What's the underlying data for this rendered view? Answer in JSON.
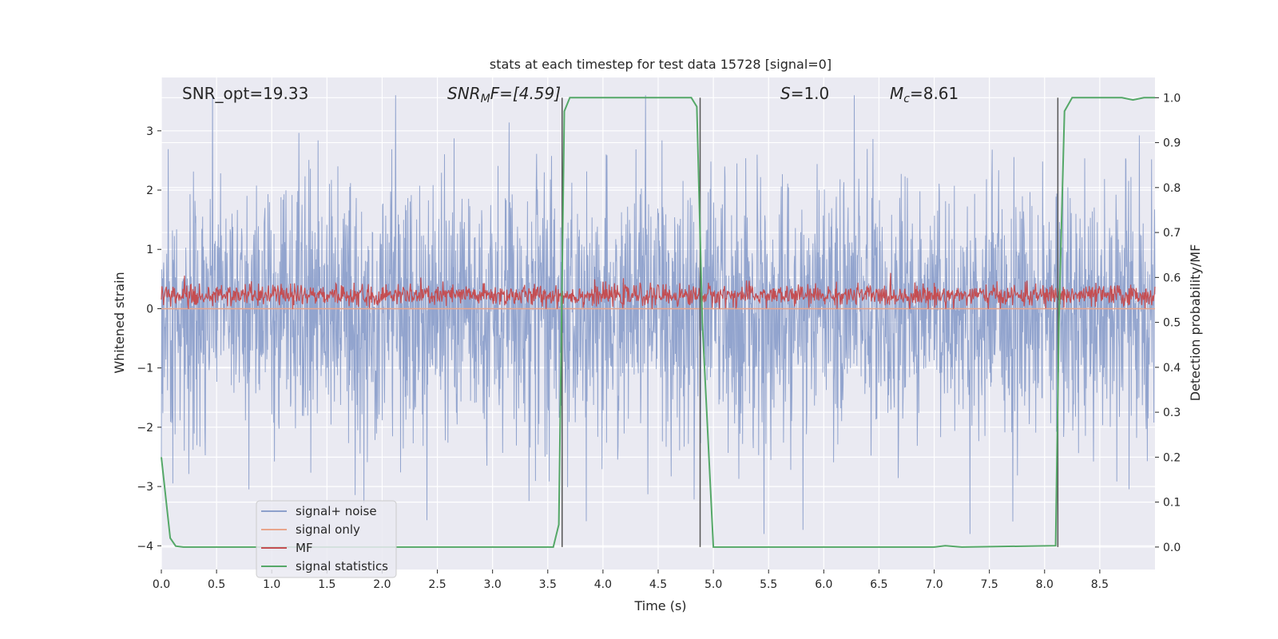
{
  "chart_data": {
    "type": "line",
    "title": "stats at each timestep for test data 15728 [signal=0]",
    "xlabel": "Time (s)",
    "ylabel": "Whitened strain",
    "y2label": "Detection probability/MF",
    "xlim": [
      0,
      9
    ],
    "ylim": [
      -4.4,
      3.9
    ],
    "y2lim": [
      -0.05,
      1.045
    ],
    "grid": true,
    "legend_position": "lower-left",
    "x_ticks": [
      "0.0",
      "0.5",
      "1.0",
      "1.5",
      "2.0",
      "2.5",
      "3.0",
      "3.5",
      "4.0",
      "4.5",
      "5.0",
      "5.5",
      "6.0",
      "6.5",
      "7.0",
      "7.5",
      "8.0",
      "8.5"
    ],
    "x_tick_values": [
      0,
      0.5,
      1,
      1.5,
      2,
      2.5,
      3,
      3.5,
      4,
      4.5,
      5,
      5.5,
      6,
      6.5,
      7,
      7.5,
      8,
      8.5
    ],
    "y_ticks": [
      "−4",
      "−3",
      "−2",
      "−1",
      "0",
      "1",
      "2",
      "3"
    ],
    "y_tick_values": [
      -4,
      -3,
      -2,
      -1,
      0,
      1,
      2,
      3
    ],
    "y2_ticks": [
      "0.0",
      "0.1",
      "0.2",
      "0.3",
      "0.4",
      "0.5",
      "0.6",
      "0.7",
      "0.8",
      "0.9",
      "1.0"
    ],
    "y2_tick_values": [
      0,
      0.1,
      0.2,
      0.3,
      0.4,
      0.5,
      0.6,
      0.7,
      0.8,
      0.9,
      1.0
    ],
    "annotations": {
      "snr_opt": "SNR_opt=19.33",
      "snr_mf_main": "SNR",
      "snr_mf_sub": "M",
      "snr_mf_rest": "F=[4.59]",
      "s_main": "S",
      "s_rest": "=1.0",
      "mc_main": "M",
      "mc_sub": "c",
      "mc_rest": "=8.61"
    },
    "series": [
      {
        "name": "signal+ noise",
        "color": "#8da0cb",
        "axis": "left",
        "amplitude_envelope": [
          -3.8,
          3.6
        ]
      },
      {
        "name": "signal only",
        "color": "#e8a58c",
        "axis": "left",
        "values_constant": 0.0
      },
      {
        "name": "MF",
        "color": "#c44e52",
        "axis": "right",
        "mean": 0.56,
        "range": [
          0.53,
          0.61
        ]
      },
      {
        "name": "signal statistics",
        "color": "#55a868",
        "axis": "right",
        "x": [
          0.0,
          0.08,
          0.13,
          0.2,
          3.55,
          3.6,
          3.65,
          3.7,
          4.8,
          4.85,
          4.9,
          5.0,
          7.0,
          7.1,
          7.25,
          8.1,
          8.13,
          8.18,
          8.25,
          8.7,
          8.8,
          8.9,
          9.0
        ],
        "values": [
          0.2,
          0.02,
          0.002,
          0.0,
          0.0,
          0.05,
          0.97,
          1.0,
          1.0,
          0.98,
          0.5,
          0.0,
          0.0,
          0.003,
          0.0,
          0.003,
          0.5,
          0.97,
          1.0,
          1.0,
          0.995,
          1.0,
          1.0
        ]
      }
    ],
    "vertical_lines": [
      3.63,
      4.88,
      8.12
    ]
  }
}
